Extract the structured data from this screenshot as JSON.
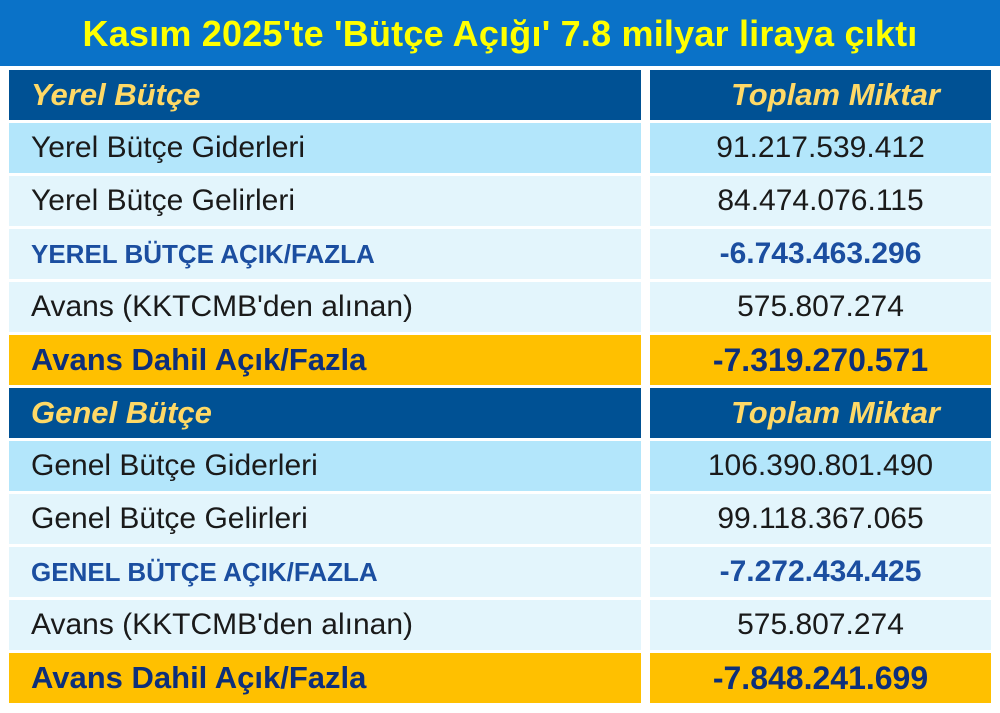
{
  "title": "Kasım 2025'te 'Bütçe Açığı' 7.8 milyar liraya çıktı",
  "sections": [
    {
      "header": {
        "label": "Yerel Bütçe",
        "amount_header": "Toplam Miktar"
      },
      "rows": [
        {
          "label": "Yerel Bütçe Giderleri",
          "value": "91.217.539.412"
        },
        {
          "label": "Yerel Bütçe Gelirleri",
          "value": "84.474.076.115"
        },
        {
          "label": "YEREL BÜTÇE AÇIK/FAZLA",
          "value": "-6.743.463.296"
        },
        {
          "label": "Avans (KKTCMB'den alınan)",
          "value": "575.807.274"
        },
        {
          "label": "Avans Dahil Açık/Fazla",
          "value": "-7.319.270.571"
        }
      ]
    },
    {
      "header": {
        "label": "Genel Bütçe",
        "amount_header": "Toplam Miktar"
      },
      "rows": [
        {
          "label": "Genel Bütçe Giderleri",
          "value": "106.390.801.490"
        },
        {
          "label": "Genel Bütçe Gelirleri",
          "value": "99.118.367.065"
        },
        {
          "label": "GENEL BÜTÇE AÇIK/FAZLA",
          "value": "-7.272.434.425"
        },
        {
          "label": "Avans (KKTCMB'den alınan)",
          "value": "575.807.274"
        },
        {
          "label": "Avans Dahil Açık/Fazla",
          "value": "-7.848.241.699"
        }
      ]
    }
  ],
  "colors": {
    "title_bg": "#0a72c8",
    "title_text": "#ffff00",
    "header_bg": "#005194",
    "header_text": "#ffd966",
    "row_light": "#b3e6fb",
    "row_lighter": "#e3f5fc",
    "total_text": "#1b4ea0",
    "gold_bg": "#ffc000",
    "gold_text": "#0d2f7a"
  }
}
